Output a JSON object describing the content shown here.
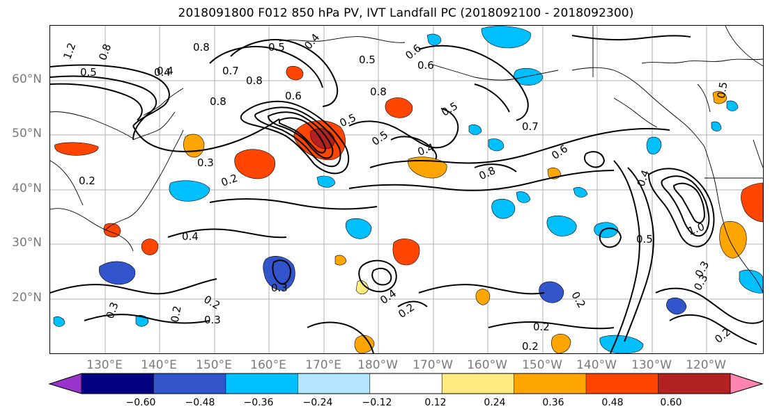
{
  "title": "2018091800 F012 850 hPa PV, IVT Landfall PC (2018092100 - 2018092300)",
  "latitude_labels": [
    "60°N",
    "50°N",
    "40°N",
    "30°N",
    "20°N"
  ],
  "longitude_labels": [
    "130°E",
    "140°E",
    "150°E",
    "160°E",
    "170°E",
    "180°W",
    "170°W",
    "160°W",
    "150°W",
    "140°W",
    "130°W",
    "120°W"
  ],
  "colorbar": {
    "tick_labels": [
      "−0.60",
      "−0.48",
      "−0.36",
      "−0.24",
      "−0.12",
      "0.12",
      "0.24",
      "0.36",
      "0.48",
      "0.60"
    ],
    "colors": [
      "#9933cc",
      "#000080",
      "#3355cc",
      "#00bfff",
      "#b3e5ff",
      "#ffffff",
      "#ffeb80",
      "#ffa500",
      "#ff4500",
      "#b22222",
      "#ff85b0"
    ]
  },
  "contour_labels": [
    {
      "text": "1.2"
    },
    {
      "text": "0.8"
    },
    {
      "text": "0.8"
    },
    {
      "text": "0.5"
    },
    {
      "text": "0.4"
    },
    {
      "text": "0.5"
    },
    {
      "text": "0.4"
    },
    {
      "text": "0.7"
    },
    {
      "text": "0.8"
    },
    {
      "text": "0.6"
    },
    {
      "text": "0.8"
    },
    {
      "text": "0.6"
    },
    {
      "text": "0.8"
    },
    {
      "text": "0.6"
    },
    {
      "text": "0.5"
    },
    {
      "text": "0.5"
    },
    {
      "text": "0.5"
    },
    {
      "text": "0.7"
    },
    {
      "text": "0.6"
    },
    {
      "text": "0.4"
    },
    {
      "text": "0.5"
    },
    {
      "text": "0.8"
    },
    {
      "text": "0.4"
    },
    {
      "text": "0.3"
    },
    {
      "text": "0.2"
    },
    {
      "text": "0.2"
    },
    {
      "text": "0.4"
    },
    {
      "text": "0.4"
    },
    {
      "text": "0.5"
    },
    {
      "text": "1.0"
    },
    {
      "text": "0.3"
    },
    {
      "text": "0.4"
    },
    {
      "text": "0.2"
    },
    {
      "text": "0.3"
    },
    {
      "text": "0.3"
    },
    {
      "text": "0.2"
    },
    {
      "text": "0.3"
    },
    {
      "text": "0.2"
    },
    {
      "text": "0.2"
    },
    {
      "text": "0.2"
    },
    {
      "text": "0.3"
    },
    {
      "text": "0.2"
    },
    {
      "text": "0.2"
    },
    {
      "text": "0.5"
    }
  ]
}
